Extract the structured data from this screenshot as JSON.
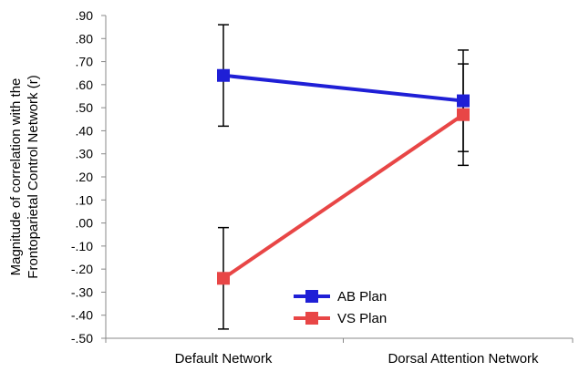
{
  "chart_data": {
    "type": "line",
    "categories": [
      "Default Network",
      "Dorsal Attention Network"
    ],
    "ylabel_lines": [
      "Magnitude of correlation with the",
      "Frontoparietal Control Network (r)"
    ],
    "ylim": [
      -0.5,
      0.9
    ],
    "yticks": [
      0.9,
      0.8,
      0.7,
      0.6,
      0.5,
      0.4,
      0.3,
      0.2,
      0.1,
      0.0,
      -0.1,
      -0.2,
      -0.3,
      -0.4,
      -0.5
    ],
    "ytick_labels": [
      ".90",
      ".80",
      ".70",
      ".60",
      ".50",
      ".40",
      ".30",
      ".20",
      ".10",
      ".00",
      "-.10",
      "-.20",
      "-.30",
      "-.40",
      "-.50"
    ],
    "grid": false,
    "legend_position": "bottom-center",
    "series": [
      {
        "name": "AB Plan",
        "color": "#1f1fd6",
        "values": [
          0.64,
          0.53
        ],
        "err_low": [
          0.42,
          0.31
        ],
        "err_high": [
          0.86,
          0.75
        ]
      },
      {
        "name": "VS Plan",
        "color": "#e84646",
        "values": [
          -0.24,
          0.47
        ],
        "err_low": [
          -0.46,
          0.25
        ],
        "err_high": [
          -0.02,
          0.69
        ]
      }
    ]
  }
}
